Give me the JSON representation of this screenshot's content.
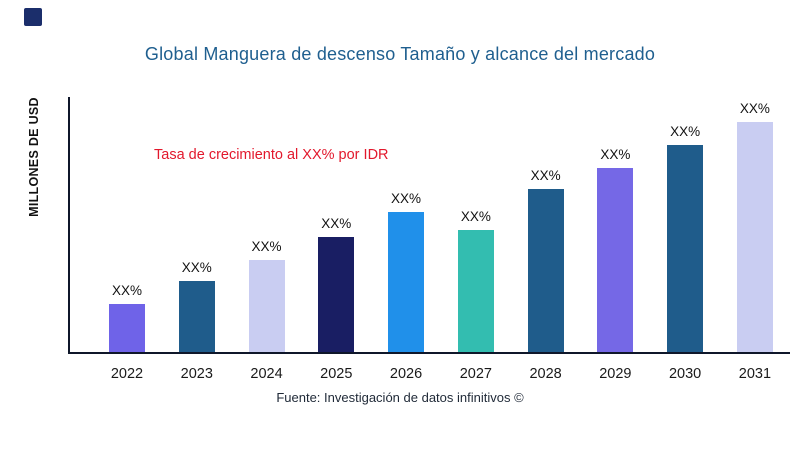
{
  "logo": {
    "color": "#1b2e6b"
  },
  "title": "Global Manguera de descenso Tamaño y alcance del mercado",
  "title_color": "#1f5f8f",
  "annotation_text": "Tasa de crecimiento al XX% por IDR",
  "annotation_color": "#e2182c",
  "source": "Fuente: Investigación de datos infinitivos ©",
  "chart_data": {
    "type": "bar",
    "title": "Global Manguera de descenso Tamaño y alcance del mercado",
    "xlabel": "",
    "ylabel": "MILLONES DE USD",
    "ylim": [
      0,
      110
    ],
    "grid": false,
    "legend_position": "none",
    "categories": [
      "2022",
      "2023",
      "2024",
      "2025",
      "2026",
      "2027",
      "2028",
      "2029",
      "2030",
      "2031"
    ],
    "values": [
      21,
      31,
      40,
      50,
      61,
      53,
      71,
      80,
      90,
      100
    ],
    "bar_labels": [
      "XX%",
      "XX%",
      "XX%",
      "XX%",
      "XX%",
      "XX%",
      "XX%",
      "XX%",
      "XX%",
      "XX%"
    ],
    "bar_colors": [
      "#6f63e8",
      "#1f5c8b",
      "#c9cdf2",
      "#191e63",
      "#2090ea",
      "#33bdb0",
      "#1f5c8b",
      "#7568e6",
      "#1f5c8b",
      "#c9cdf2"
    ],
    "annotation": "Tasa de crecimiento al XX% por IDR"
  }
}
